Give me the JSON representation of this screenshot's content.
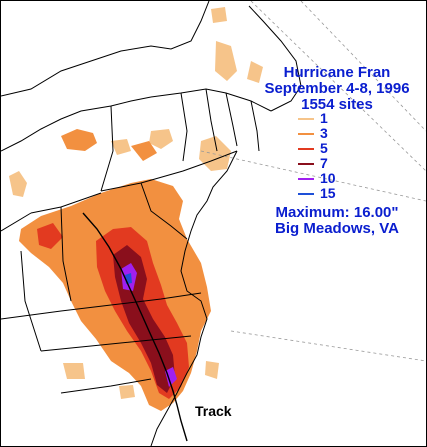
{
  "map": {
    "title_line1": "Hurricane Fran",
    "title_line2": "September 4-8, 1996",
    "title_line3": "1554 sites",
    "legend": [
      {
        "label": "1",
        "color": "#f6c48a"
      },
      {
        "label": "3",
        "color": "#f29040"
      },
      {
        "label": "5",
        "color": "#e23a20"
      },
      {
        "label": "7",
        "color": "#8a0f1c"
      },
      {
        "label": "10",
        "color": "#a020f0"
      },
      {
        "label": "15",
        "color": "#1e50d8"
      }
    ],
    "maximum_line1": "Maximum:  16.00\"",
    "maximum_line2": "Big Meadows, VA",
    "track_label": "Track"
  }
}
